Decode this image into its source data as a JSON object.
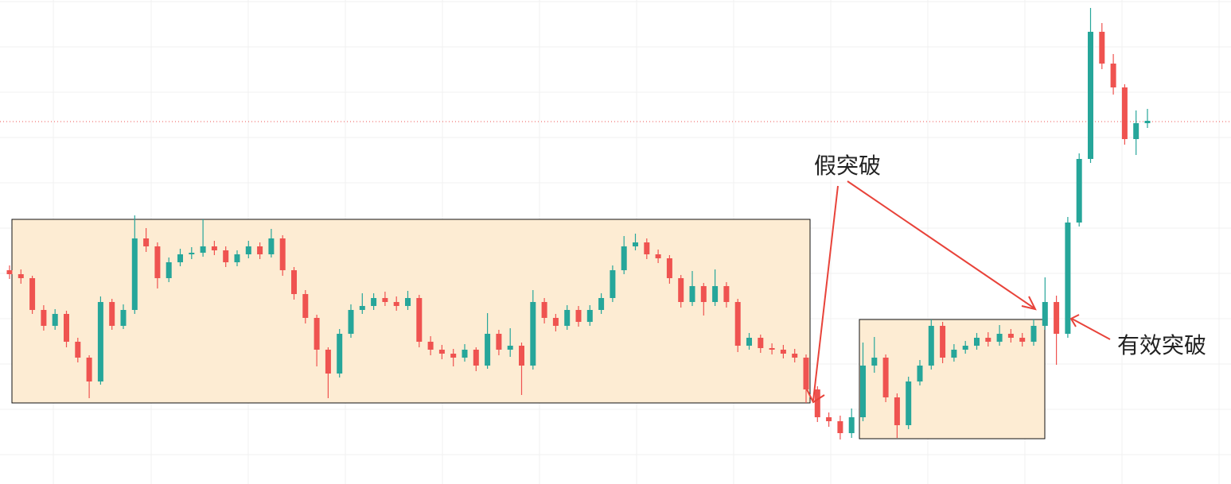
{
  "chart_data": {
    "type": "candlestick",
    "annotations": [
      "假突破",
      "有效突破"
    ],
    "up_color": "#26a69a",
    "down_color": "#ef5350",
    "ylim": [
      0,
      609
    ],
    "open": [
      269,
      264,
      259,
      219,
      199,
      214,
      179,
      159,
      129,
      229,
      199,
      219,
      309,
      299,
      259,
      279,
      289,
      291,
      299,
      294,
      279,
      289,
      299,
      289,
      309,
      269,
      239,
      209,
      169,
      139,
      189,
      219,
      224,
      234,
      229,
      224,
      234,
      179,
      169,
      164,
      159,
      169,
      149,
      189,
      169,
      174,
      149,
      229,
      209,
      199,
      219,
      204,
      219,
      234,
      269,
      299,
      304,
      289,
      284,
      259,
      229,
      249,
      229,
      249,
      229,
      174,
      184,
      171,
      169,
      164,
      159,
      119,
      84,
      79,
      64,
      84,
      149,
      159,
      109,
      74,
      129,
      149,
      199,
      159,
      169,
      174,
      184,
      179,
      189,
      184,
      179,
      199,
      229,
      189,
      329,
      409,
      569,
      529,
      499,
      434,
      454
    ],
    "high": [
      275,
      270,
      262,
      225,
      220,
      218,
      184,
      162,
      236,
      233,
      226,
      338,
      322,
      304,
      285,
      296,
      298,
      333,
      306,
      299,
      294,
      306,
      304,
      321,
      313,
      273,
      244,
      213,
      172,
      195,
      226,
      240,
      240,
      242,
      236,
      243,
      238,
      186,
      175,
      170,
      176,
      172,
      215,
      194,
      196,
      178,
      244,
      234,
      214,
      225,
      224,
      225,
      240,
      275,
      312,
      315,
      309,
      295,
      288,
      263,
      268,
      253,
      270,
      254,
      233,
      190,
      188,
      177,
      175,
      170,
      163,
      123,
      90,
      86,
      95,
      178,
      185,
      163,
      114,
      135,
      156,
      207,
      204,
      176,
      180,
      190,
      191,
      200,
      195,
      190,
      207,
      260,
      237,
      336,
      416,
      599,
      580,
      541,
      503,
      470,
      472
    ],
    "low": [
      258,
      252,
      214,
      193,
      194,
      172,
      153,
      108,
      125,
      194,
      195,
      214,
      292,
      246,
      254,
      274,
      283,
      286,
      288,
      273,
      274,
      284,
      283,
      285,
      262,
      232,
      202,
      148,
      108,
      134,
      184,
      214,
      219,
      224,
      218,
      219,
      172,
      162,
      157,
      148,
      154,
      142,
      145,
      162,
      160,
      112,
      144,
      202,
      192,
      194,
      198,
      199,
      214,
      229,
      264,
      294,
      283,
      278,
      252,
      222,
      224,
      212,
      224,
      222,
      166,
      169,
      165,
      163,
      158,
      153,
      102,
      78,
      72,
      56,
      58,
      79,
      140,
      103,
      58,
      69,
      124,
      144,
      152,
      154,
      164,
      169,
      173,
      174,
      178,
      173,
      174,
      194,
      150,
      184,
      324,
      404,
      522,
      490,
      427,
      414,
      448
    ],
    "close": [
      264,
      259,
      219,
      199,
      214,
      179,
      159,
      129,
      229,
      199,
      219,
      309,
      299,
      259,
      279,
      289,
      291,
      299,
      294,
      279,
      289,
      299,
      289,
      309,
      269,
      239,
      209,
      169,
      139,
      189,
      219,
      224,
      234,
      229,
      224,
      234,
      179,
      169,
      164,
      159,
      169,
      149,
      189,
      169,
      174,
      149,
      229,
      209,
      199,
      219,
      204,
      219,
      234,
      269,
      299,
      304,
      289,
      284,
      259,
      229,
      249,
      229,
      249,
      229,
      174,
      184,
      171,
      169,
      164,
      159,
      119,
      84,
      79,
      64,
      84,
      149,
      159,
      109,
      74,
      129,
      149,
      199,
      159,
      169,
      174,
      184,
      179,
      189,
      184,
      179,
      199,
      229,
      189,
      329,
      409,
      569,
      529,
      499,
      434,
      454,
      457
    ]
  }
}
